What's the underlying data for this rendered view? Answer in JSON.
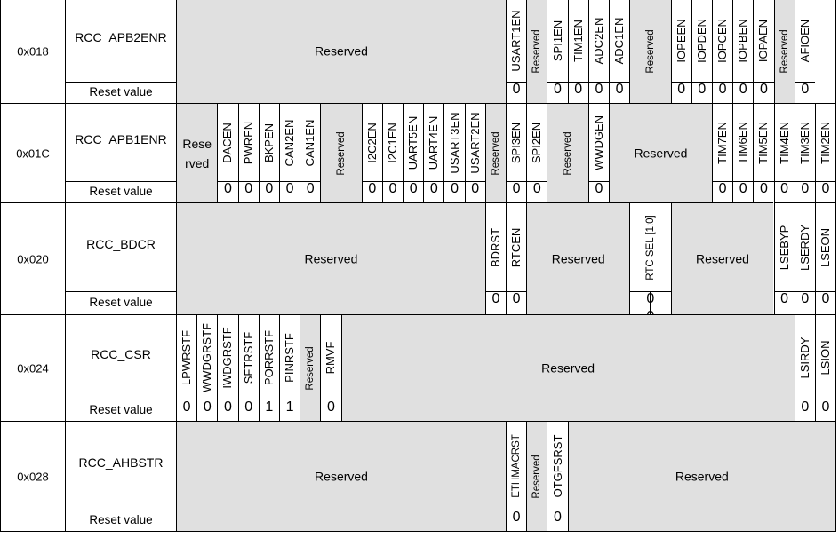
{
  "reset_label": "Reset value",
  "reserved_label": "Reserved",
  "registers": [
    {
      "offset": "0x018",
      "name": "RCC_APB2ENR",
      "fields": [
        {
          "label": "Reserved",
          "bits": 16,
          "reserved": true
        },
        {
          "label": "USART1EN",
          "bits": 1,
          "reset": "0"
        },
        {
          "label": "Reserved",
          "bits": 1,
          "reserved": true,
          "small": true
        },
        {
          "label": "SPI1EN",
          "bits": 1,
          "reset": "0"
        },
        {
          "label": "TIM1EN",
          "bits": 1,
          "reset": "0"
        },
        {
          "label": "ADC2EN",
          "bits": 1,
          "reset": "0"
        },
        {
          "label": "ADC1EN",
          "bits": 1,
          "reset": "0"
        },
        {
          "label": "Reserved",
          "bits": 2,
          "reserved": true,
          "small": true
        },
        {
          "label": "IOPEEN",
          "bits": 1,
          "reset": "0"
        },
        {
          "label": "IOPDEN",
          "bits": 1,
          "reset": "0"
        },
        {
          "label": "IOPCEN",
          "bits": 1,
          "reset": "0"
        },
        {
          "label": "IOPBEN",
          "bits": 1,
          "reset": "0"
        },
        {
          "label": "IOPAEN",
          "bits": 1,
          "reset": "0"
        },
        {
          "label": "Reserved",
          "bits": 1,
          "reserved": true,
          "small": true
        },
        {
          "label": "AFIOEN",
          "bits": 1,
          "reset": "0"
        }
      ]
    },
    {
      "offset": "0x01C",
      "name": "RCC_APB1ENR",
      "fields": [
        {
          "label": "Rese rved",
          "bits": 2,
          "reserved": true,
          "horizontal": true
        },
        {
          "label": "DACEN",
          "bits": 1,
          "reset": "0"
        },
        {
          "label": "PWREN",
          "bits": 1,
          "reset": "0"
        },
        {
          "label": "BKPEN",
          "bits": 1,
          "reset": "0"
        },
        {
          "label": "CAN2EN",
          "bits": 1,
          "reset": "0"
        },
        {
          "label": "CAN1EN",
          "bits": 1,
          "reset": "0"
        },
        {
          "label": "Reserved",
          "bits": 2,
          "reserved": true,
          "small": true
        },
        {
          "label": "I2C2EN",
          "bits": 1,
          "reset": "0"
        },
        {
          "label": "I2C1EN",
          "bits": 1,
          "reset": "0"
        },
        {
          "label": "UART5EN",
          "bits": 1,
          "reset": "0"
        },
        {
          "label": "UART4EN",
          "bits": 1,
          "reset": "0"
        },
        {
          "label": "USART3EN",
          "bits": 1,
          "reset": "0"
        },
        {
          "label": "USART2EN",
          "bits": 1,
          "reset": "0"
        },
        {
          "label": "Reserved",
          "bits": 1,
          "reserved": true,
          "small": true
        },
        {
          "label": "SPI3EN",
          "bits": 1,
          "reset": "0"
        },
        {
          "label": "SPI2EN",
          "bits": 1,
          "reset": "0"
        },
        {
          "label": "Reserved",
          "bits": 2,
          "reserved": true,
          "small": true
        },
        {
          "label": "WWDGEN",
          "bits": 1,
          "reset": "0"
        },
        {
          "label": "Reserved",
          "bits": 5,
          "reserved": true,
          "horizontal": true
        },
        {
          "label": "TIM7EN",
          "bits": 1,
          "reset": "0"
        },
        {
          "label": "TIM6EN",
          "bits": 1,
          "reset": "0"
        },
        {
          "label": "TIM5EN",
          "bits": 1,
          "reset": "0"
        },
        {
          "label": "TIM4EN",
          "bits": 1,
          "reset": "0"
        },
        {
          "label": "TIM3EN",
          "bits": 1,
          "reset": "0"
        },
        {
          "label": "TIM2EN",
          "bits": 1,
          "reset": "0"
        }
      ]
    },
    {
      "offset": "0x020",
      "name": "RCC_BDCR",
      "fields": [
        {
          "label": "Reserved",
          "bits": 15,
          "reserved": true
        },
        {
          "label": "BDRST",
          "bits": 1,
          "reset": "0"
        },
        {
          "label": "RTCEN",
          "bits": 1,
          "reset": "0"
        },
        {
          "label": "Reserved",
          "bits": 5,
          "reserved": true
        },
        {
          "label": "RTC SEL [1:0]",
          "bits": 2,
          "reset": "0 0",
          "white": true
        },
        {
          "label": "Reserved",
          "bits": 5,
          "reserved": true
        },
        {
          "label": "LSEBYP",
          "bits": 1,
          "reset": "0"
        },
        {
          "label": "LSERDY",
          "bits": 1,
          "reset": "0"
        },
        {
          "label": "LSEON",
          "bits": 1,
          "reset": "0"
        }
      ]
    },
    {
      "offset": "0x024",
      "name": "RCC_CSR",
      "fields": [
        {
          "label": "LPWRSTF",
          "bits": 1,
          "reset": "0"
        },
        {
          "label": "WWDGRSTF",
          "bits": 1,
          "reset": "0"
        },
        {
          "label": "IWDGRSTF",
          "bits": 1,
          "reset": "0"
        },
        {
          "label": "SFTRSTF",
          "bits": 1,
          "reset": "0"
        },
        {
          "label": "PORRSTF",
          "bits": 1,
          "reset": "1"
        },
        {
          "label": "PINRSTF",
          "bits": 1,
          "reset": "1"
        },
        {
          "label": "Reserved",
          "bits": 1,
          "reserved": true,
          "small": true
        },
        {
          "label": "RMVF",
          "bits": 1,
          "reset": "0"
        },
        {
          "label": "Reserved",
          "bits": 22,
          "reserved": true
        },
        {
          "label": "LSIRDY",
          "bits": 1,
          "reset": "0"
        },
        {
          "label": "LSION",
          "bits": 1,
          "reset": "0"
        }
      ]
    },
    {
      "offset": "0x028",
      "name": "RCC_AHBSTR",
      "fields": [
        {
          "label": "Reserved",
          "bits": 16,
          "reserved": true
        },
        {
          "label": "ETHMACRST",
          "bits": 1,
          "reset": "0"
        },
        {
          "label": "Reserved",
          "bits": 1,
          "reserved": true,
          "small": true
        },
        {
          "label": "OTGFSRST",
          "bits": 1,
          "reset": "0"
        },
        {
          "label": "Reserved",
          "bits": 13,
          "reserved": true
        }
      ]
    }
  ]
}
